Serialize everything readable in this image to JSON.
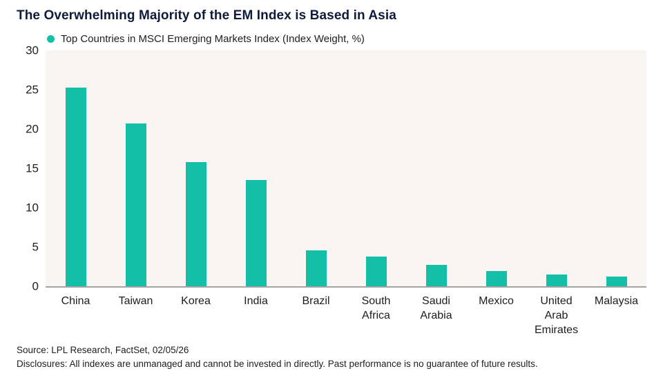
{
  "title": "The Overwhelming Majority of the EM Index is Based in Asia",
  "legend": {
    "label": "Top Countries in MSCI Emerging Markets Index (Index Weight, %)"
  },
  "colors": {
    "bar": "#13bfa6",
    "title": "#0f1b3d",
    "plot_background": "#faf5f2",
    "axis_line": "#a3a3a3"
  },
  "chart_data": {
    "type": "bar",
    "title": "The Overwhelming Majority of the EM Index is Based in Asia",
    "legend_label": "Top Countries in MSCI Emerging Markets Index (Index Weight, %)",
    "categories": [
      "China",
      "Taiwan",
      "Korea",
      "India",
      "Brazil",
      "South\nAfrica",
      "Saudi\nArabia",
      "Mexico",
      "United\nArab\nEmirates",
      "Malaysia"
    ],
    "values": [
      25.3,
      20.7,
      15.8,
      13.5,
      4.6,
      3.8,
      2.7,
      1.9,
      1.5,
      1.2
    ],
    "xlabel": "",
    "ylabel": "",
    "ylim": [
      0,
      30
    ],
    "yticks": [
      "0",
      "5",
      "10",
      "15",
      "20",
      "25",
      "30"
    ],
    "grid": "off",
    "legend_position": "top-left",
    "bar_color": "#13bfa6"
  },
  "footer": {
    "source_line": "Source: LPL Research, FactSet, 02/05/26",
    "disclosure_line": "Disclosures: All indexes are unmanaged and cannot be invested in directly. Past performance is no guarantee of future results."
  }
}
